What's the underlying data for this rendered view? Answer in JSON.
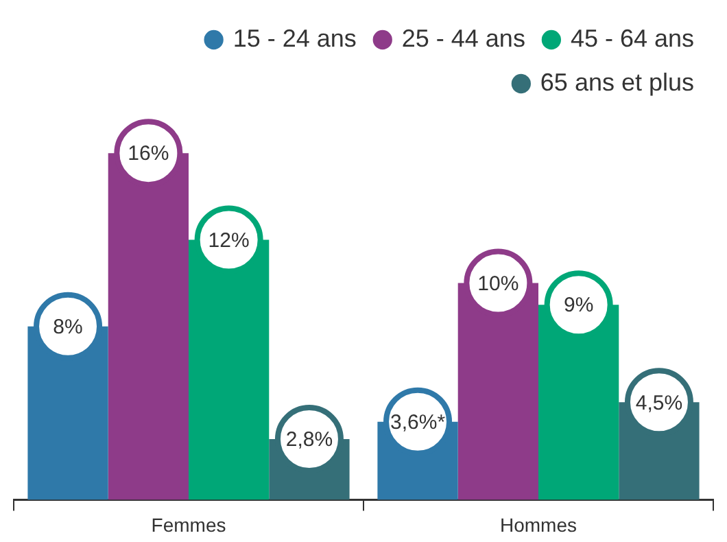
{
  "chart_data": {
    "type": "bar",
    "categories": [
      "Femmes",
      "Hommes"
    ],
    "series": [
      {
        "name": "15 - 24 ans",
        "color": "#2f79a9",
        "values": [
          8,
          3.6
        ],
        "value_labels": [
          "8%",
          "3,6%*"
        ]
      },
      {
        "name": "25 - 44 ans",
        "color": "#8e3b89",
        "values": [
          16,
          10
        ],
        "value_labels": [
          "16%",
          "10%"
        ]
      },
      {
        "name": "45 - 64 ans",
        "color": "#00a777",
        "values": [
          12,
          9
        ],
        "value_labels": [
          "12%",
          "9%"
        ]
      },
      {
        "name": "65 ans et plus",
        "color": "#356f78",
        "values": [
          2.8,
          4.5
        ],
        "value_labels": [
          "2,8%",
          "4,5%"
        ]
      }
    ],
    "legend": "top right",
    "grid": false
  }
}
